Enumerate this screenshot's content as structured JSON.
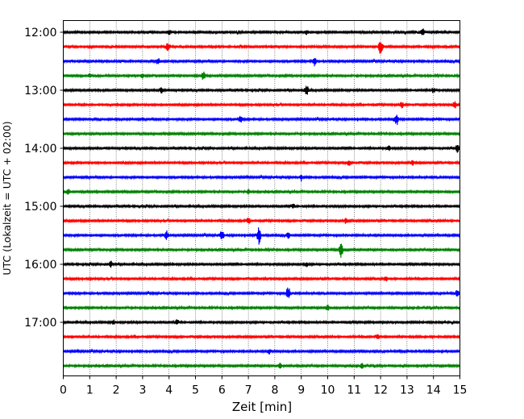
{
  "chart_data": {
    "type": "line",
    "title": "",
    "xlabel": "Zeit  [min]",
    "ylabel": "UTC (Lokalzeit = UTC + 02:00)",
    "xlim": [
      0,
      15
    ],
    "x_ticks": [
      "0",
      "1",
      "2",
      "3",
      "4",
      "5",
      "6",
      "7",
      "8",
      "9",
      "10",
      "11",
      "12",
      "13",
      "14",
      "15"
    ],
    "y_tick_labels": [
      "12:00",
      "13:00",
      "14:00",
      "15:00",
      "16:00",
      "17:00"
    ],
    "trace_colors": [
      "#000000",
      "#ff0000",
      "#0000ff",
      "#008000"
    ],
    "grid": "vertical dotted at each minute",
    "traces": [
      {
        "start": "12:00",
        "color_index": 0,
        "events": [
          [
            4.0,
            0.5
          ],
          [
            9.2,
            0.5
          ],
          [
            13.6,
            0.6
          ]
        ]
      },
      {
        "start": "12:15",
        "color_index": 1,
        "events": [
          [
            3.95,
            0.8
          ],
          [
            12.0,
            1.6
          ]
        ]
      },
      {
        "start": "12:30",
        "color_index": 2,
        "events": [
          [
            3.6,
            0.6
          ],
          [
            9.5,
            0.9
          ]
        ]
      },
      {
        "start": "12:45",
        "color_index": 3,
        "events": [
          [
            1.0,
            0.4
          ],
          [
            3.0,
            0.4
          ],
          [
            5.3,
            0.8
          ]
        ]
      },
      {
        "start": "13:00",
        "color_index": 0,
        "events": [
          [
            3.7,
            0.5
          ],
          [
            9.2,
            1.0
          ],
          [
            14.0,
            0.5
          ]
        ]
      },
      {
        "start": "13:15",
        "color_index": 1,
        "events": [
          [
            12.8,
            0.6
          ],
          [
            14.8,
            0.7
          ]
        ]
      },
      {
        "start": "13:30",
        "color_index": 2,
        "events": [
          [
            6.7,
            0.6
          ],
          [
            12.6,
            1.0
          ]
        ]
      },
      {
        "start": "13:45",
        "color_index": 3,
        "events": []
      },
      {
        "start": "14:00",
        "color_index": 0,
        "events": [
          [
            12.3,
            0.5
          ],
          [
            14.9,
            0.7
          ]
        ]
      },
      {
        "start": "14:15",
        "color_index": 1,
        "events": [
          [
            10.8,
            0.5
          ],
          [
            13.2,
            0.5
          ]
        ]
      },
      {
        "start": "14:30",
        "color_index": 2,
        "events": [
          [
            9.0,
            0.5
          ]
        ]
      },
      {
        "start": "14:45",
        "color_index": 3,
        "events": [
          [
            0.2,
            0.6
          ],
          [
            7.0,
            0.5
          ]
        ]
      },
      {
        "start": "15:00",
        "color_index": 0,
        "events": [
          [
            8.7,
            0.4
          ]
        ]
      },
      {
        "start": "15:15",
        "color_index": 1,
        "events": [
          [
            7.0,
            0.6
          ],
          [
            10.7,
            0.5
          ]
        ]
      },
      {
        "start": "15:30",
        "color_index": 2,
        "events": [
          [
            3.9,
            0.9
          ],
          [
            6.0,
            1.0
          ],
          [
            7.4,
            1.8
          ],
          [
            8.5,
            0.6
          ]
        ]
      },
      {
        "start": "15:45",
        "color_index": 3,
        "events": [
          [
            10.5,
            1.5
          ]
        ]
      },
      {
        "start": "16:00",
        "color_index": 0,
        "events": [
          [
            1.8,
            0.6
          ],
          [
            9.2,
            0.4
          ]
        ]
      },
      {
        "start": "16:15",
        "color_index": 1,
        "events": [
          [
            12.2,
            0.4
          ]
        ]
      },
      {
        "start": "16:30",
        "color_index": 2,
        "events": [
          [
            8.5,
            1.2
          ],
          [
            14.9,
            0.6
          ]
        ]
      },
      {
        "start": "16:45",
        "color_index": 3,
        "events": [
          [
            10.0,
            0.6
          ]
        ]
      },
      {
        "start": "17:00",
        "color_index": 0,
        "events": [
          [
            1.9,
            0.4
          ],
          [
            4.3,
            0.4
          ]
        ]
      },
      {
        "start": "17:15",
        "color_index": 1,
        "events": [
          [
            11.9,
            0.6
          ]
        ]
      },
      {
        "start": "17:30",
        "color_index": 2,
        "events": [
          [
            7.8,
            0.4
          ]
        ]
      },
      {
        "start": "17:45",
        "color_index": 3,
        "events": [
          [
            8.2,
            0.5
          ],
          [
            11.3,
            0.5
          ]
        ]
      }
    ]
  }
}
